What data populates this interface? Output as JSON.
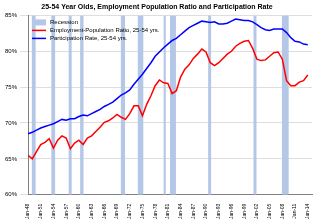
{
  "chart_data": {
    "type": "line",
    "title": "25-54 Year Olds, Employment Population Ratio and Participation Rate",
    "x": [
      1948,
      1949,
      1950,
      1951,
      1952,
      1953,
      1954,
      1955,
      1956,
      1957,
      1958,
      1959,
      1960,
      1961,
      1962,
      1963,
      1964,
      1965,
      1966,
      1967,
      1968,
      1969,
      1970,
      1971,
      1972,
      1973,
      1974,
      1975,
      1976,
      1977,
      1978,
      1979,
      1980,
      1981,
      1982,
      1983,
      1984,
      1985,
      1986,
      1987,
      1988,
      1989,
      1990,
      1991,
      1992,
      1993,
      1994,
      1995,
      1996,
      1997,
      1998,
      1999,
      2000,
      2001,
      2002,
      2003,
      2004,
      2005,
      2006,
      2007,
      2008,
      2009,
      2010,
      2011,
      2012,
      2013,
      2014
    ],
    "series": [
      {
        "name": "Employment-Population Ratio, 25-54 yrs.",
        "color": "#ff0000",
        "values": [
          65.5,
          65.0,
          66.0,
          67.0,
          67.3,
          67.8,
          66.5,
          67.6,
          68.2,
          67.9,
          66.4,
          67.2,
          67.6,
          67.0,
          67.9,
          68.2,
          68.8,
          69.4,
          70.1,
          70.3,
          70.7,
          71.2,
          70.8,
          70.5,
          71.3,
          72.4,
          72.4,
          71.0,
          72.6,
          73.8,
          75.2,
          76.0,
          75.6,
          75.5,
          74.1,
          74.5,
          76.4,
          77.5,
          78.1,
          79.0,
          79.6,
          80.3,
          79.9,
          78.4,
          78.0,
          78.4,
          79.0,
          79.6,
          80.0,
          80.7,
          81.1,
          81.4,
          81.5,
          80.4,
          78.9,
          78.7,
          78.8,
          79.3,
          79.8,
          79.9,
          78.9,
          75.9,
          75.2,
          75.2,
          75.7,
          75.9,
          76.7
        ]
      },
      {
        "name": "Participation Rate, 25-54 yrs.",
        "color": "#0000ff",
        "values": [
          68.5,
          68.7,
          69.0,
          69.3,
          69.5,
          69.7,
          69.9,
          70.2,
          70.5,
          70.4,
          70.6,
          70.6,
          70.9,
          71.1,
          71.0,
          71.3,
          71.6,
          71.9,
          72.3,
          72.6,
          72.9,
          73.4,
          73.9,
          74.2,
          74.6,
          75.4,
          76.1,
          76.8,
          77.6,
          78.4,
          79.3,
          79.9,
          80.5,
          81.0,
          81.5,
          81.8,
          82.3,
          82.8,
          83.3,
          83.6,
          83.9,
          84.2,
          84.1,
          84.0,
          84.1,
          83.8,
          83.8,
          83.9,
          84.2,
          84.5,
          84.4,
          84.3,
          84.3,
          84.1,
          83.7,
          83.3,
          83.0,
          82.9,
          83.1,
          83.1,
          83.1,
          82.6,
          81.9,
          81.4,
          81.3,
          81.0,
          80.9
        ]
      }
    ],
    "recessions": {
      "name": "Recession",
      "color": "#b4c7e7",
      "periods": [
        [
          1948.9,
          1949.8
        ],
        [
          1953.5,
          1954.4
        ],
        [
          1957.6,
          1958.3
        ],
        [
          1960.3,
          1961.1
        ],
        [
          1969.9,
          1970.9
        ],
        [
          1973.9,
          1975.2
        ],
        [
          1980.0,
          1980.5
        ],
        [
          1981.5,
          1982.9
        ],
        [
          1990.5,
          1991.2
        ],
        [
          2001.2,
          2001.9
        ],
        [
          2007.9,
          2009.5
        ]
      ]
    },
    "xlim": [
      1948,
      2015
    ],
    "xticks": [
      {
        "value": 1948,
        "label": "Jan-48"
      },
      {
        "value": 1951,
        "label": "Jan-51"
      },
      {
        "value": 1954,
        "label": "Jan-54"
      },
      {
        "value": 1957,
        "label": "Jan-57"
      },
      {
        "value": 1960,
        "label": "Jan-60"
      },
      {
        "value": 1963,
        "label": "Jan-63"
      },
      {
        "value": 1966,
        "label": "Jan-66"
      },
      {
        "value": 1969,
        "label": "Jan-69"
      },
      {
        "value": 1972,
        "label": "Jan-72"
      },
      {
        "value": 1975,
        "label": "Jan-75"
      },
      {
        "value": 1978,
        "label": "Jan-78"
      },
      {
        "value": 1981,
        "label": "Jan-81"
      },
      {
        "value": 1984,
        "label": "Jan-84"
      },
      {
        "value": 1987,
        "label": "Jan-87"
      },
      {
        "value": 1990,
        "label": "Jan-90"
      },
      {
        "value": 1993,
        "label": "Jan-93"
      },
      {
        "value": 1996,
        "label": "Jan-96"
      },
      {
        "value": 1999,
        "label": "Jan-99"
      },
      {
        "value": 2002,
        "label": "Jan-02"
      },
      {
        "value": 2005,
        "label": "Jan-05"
      },
      {
        "value": 2008,
        "label": "Jan-08"
      },
      {
        "value": 2011,
        "label": "Jan-11"
      },
      {
        "value": 2014,
        "label": "Jan-14"
      }
    ],
    "ylim": [
      60,
      85
    ],
    "yticks": [
      {
        "value": 60,
        "label": "60%"
      },
      {
        "value": 65,
        "label": "65%"
      },
      {
        "value": 70,
        "label": "70%"
      },
      {
        "value": 75,
        "label": "75%"
      },
      {
        "value": 80,
        "label": "80%"
      },
      {
        "value": 85,
        "label": "85%"
      }
    ],
    "grid": true,
    "legend": "top-left"
  }
}
